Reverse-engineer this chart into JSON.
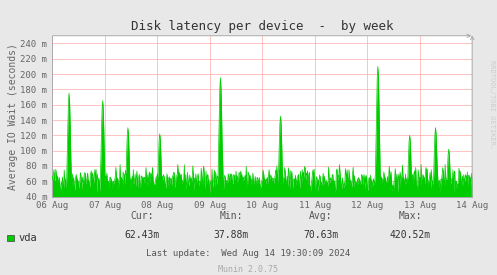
{
  "title": "Disk latency per device  -  by week",
  "ylabel": "Average IO Wait (seconds)",
  "background_color": "#e8e8e8",
  "plot_bg_color": "#ffffff",
  "grid_color": "#ffaaaa",
  "line_color": "#00cc00",
  "axis_label_color": "#666666",
  "title_color": "#333333",
  "ylim": [
    40,
    250
  ],
  "ytick_vals": [
    40,
    60,
    80,
    100,
    120,
    140,
    160,
    180,
    200,
    220,
    240
  ],
  "ytick_labels": [
    "40 m",
    "60 m",
    "80 m",
    "100 m",
    "120 m",
    "140 m",
    "160 m",
    "180 m",
    "200 m",
    "220 m",
    "240 m"
  ],
  "xlabel_dates": [
    "06 Aug",
    "07 Aug",
    "08 Aug",
    "09 Aug",
    "10 Aug",
    "11 Aug",
    "12 Aug",
    "13 Aug",
    "14 Aug"
  ],
  "legend_label": "vda",
  "legend_color": "#00cc00",
  "stats_cur": "62.43m",
  "stats_min": "37.88m",
  "stats_avg": "70.63m",
  "stats_max": "420.52m",
  "last_update": "Wed Aug 14 19:30:09 2024",
  "munin_version": "Munin 2.0.75",
  "rrdtool_label": "RRDTOOL/TOBI OETIKER.",
  "n_points": 700
}
